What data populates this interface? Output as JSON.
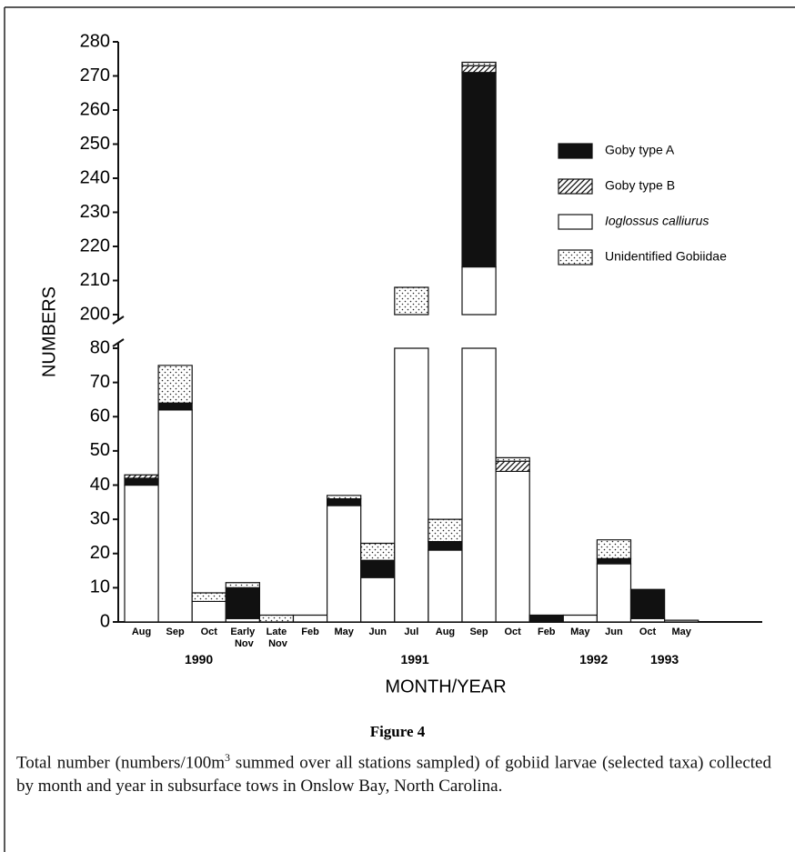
{
  "chart_data": {
    "type": "stacked-bar",
    "y_label": "NUMBERS",
    "x_label": "MONTH/YEAR",
    "categories": [
      "Aug",
      "Sep",
      "Oct",
      "Early Nov",
      "Late Nov",
      "Feb",
      "May",
      "Jun",
      "Jul",
      "Aug",
      "Sep",
      "Oct",
      "Feb",
      "May",
      "Jun",
      "Oct",
      "May"
    ],
    "year_labels": [
      "1990",
      "1991",
      "1992",
      "1993"
    ],
    "series": [
      {
        "name": "Ioglossus calliurus",
        "color": "#ffffff",
        "pattern": "none",
        "italic": true,
        "values": [
          40,
          62,
          6,
          1,
          0,
          2,
          34,
          13,
          200,
          21,
          214,
          44,
          0,
          2,
          17,
          1,
          0.5
        ]
      },
      {
        "name": "Goby type A",
        "color": "#111111",
        "pattern": "none",
        "values": [
          2,
          2,
          0,
          9,
          0,
          0,
          2,
          5,
          0,
          2.5,
          57,
          0,
          2,
          0,
          1.5,
          8.5,
          0
        ]
      },
      {
        "name": "Goby type B",
        "color": "#ffffff",
        "pattern": "hatch",
        "values": [
          1,
          0,
          0,
          0,
          0,
          0,
          0,
          0,
          0,
          0,
          2,
          3,
          0,
          0,
          0,
          0,
          0
        ]
      },
      {
        "name": "Unidentified Gobiidae",
        "color": "#ffffff",
        "pattern": "dots",
        "values": [
          0,
          11,
          2.5,
          1.5,
          2,
          0,
          1,
          5,
          8,
          6.5,
          1,
          1,
          0,
          0,
          5.5,
          0,
          0
        ]
      }
    ],
    "ylim": [
      0,
      280
    ],
    "axis_break": [
      80,
      200
    ],
    "yticks": [
      0,
      10,
      20,
      30,
      40,
      50,
      60,
      70,
      80,
      200,
      210,
      220,
      230,
      240,
      250,
      260,
      270,
      280
    ],
    "legend": "upper right",
    "legend_order": [
      1,
      2,
      0,
      3
    ]
  },
  "caption": {
    "label": "Figure 4",
    "text_before": "Total number (numbers/100m",
    "text_sup": "3",
    "text_after": " summed over all stations sampled) of gobiid larvae (selected taxa) collected by month and year in subsurface tows in Onslow Bay, North Carolina."
  }
}
